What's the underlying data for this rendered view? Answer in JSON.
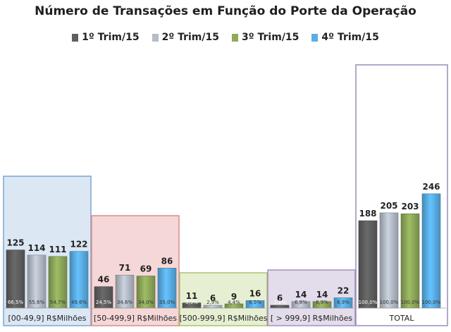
{
  "chart_data": {
    "type": "bar",
    "title": "Número de Transações em Função do Porte da Operação",
    "xlabel": "",
    "ylabel": "",
    "categories": [
      "[00-49,9] R$Milhões",
      "[50-499,9] R$Milhões",
      "[500-999,9] R$Milhões",
      "[ > 999,9] R$Milhões",
      "TOTAL"
    ],
    "series": [
      {
        "name": "1º Trim/15",
        "color": "#5f5f5f",
        "values": [
          125,
          46,
          11,
          6,
          188
        ],
        "percent_labels": [
          "66,5%",
          "24,5%",
          "5,9%",
          "3,2%",
          "100,0%"
        ]
      },
      {
        "name": "2º Trim/15",
        "color": "#b4bcc8",
        "values": [
          114,
          71,
          6,
          14,
          205
        ],
        "percent_labels": [
          "55,6%",
          "34,6%",
          "2,9%",
          "6,8%",
          "100,0%"
        ]
      },
      {
        "name": "3º Trim/15",
        "color": "#8ea95a",
        "values": [
          111,
          69,
          9,
          14,
          203
        ],
        "percent_labels": [
          "54,7%",
          "34,0%",
          "4,4%",
          "6,9%",
          "100,0%"
        ]
      },
      {
        "name": "4º Trim/15",
        "color": "#5aaee6",
        "values": [
          122,
          86,
          16,
          22,
          246
        ],
        "percent_labels": [
          "49,6%",
          "35,0%",
          "6,5%",
          "8,9%",
          "100,0%"
        ]
      }
    ],
    "group_colors": [
      {
        "fill": "#dbe7f3",
        "border": "#7ea6cf"
      },
      {
        "fill": "#f6d7d7",
        "border": "#d98c8c"
      },
      {
        "fill": "#e7efd3",
        "border": "#a9c46e"
      },
      {
        "fill": "#e3dcea",
        "border": "#a58fbd"
      },
      {
        "fill": "#ffffff",
        "border": "#9a8cb8"
      }
    ],
    "ylim": [
      0,
      260
    ],
    "legend_position": "top",
    "grid": false
  }
}
